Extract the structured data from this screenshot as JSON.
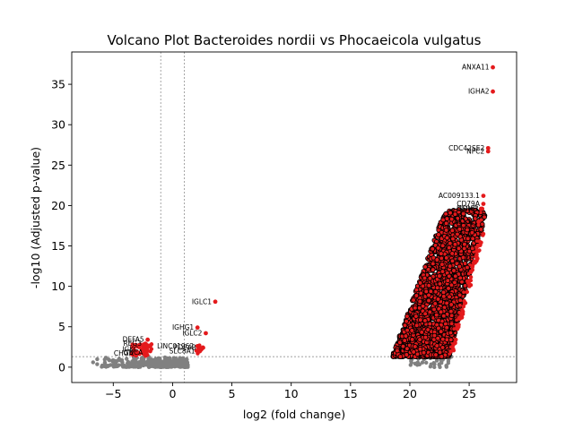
{
  "chart_data": {
    "type": "scatter",
    "title": "Volcano Plot Bacteroides nordii vs Phocaeicola vulgatus",
    "xlabel": "log2 (fold change)",
    "ylabel": "-log10 (Adjusted p-value)",
    "xlim": [
      -8.5,
      29
    ],
    "ylim": [
      -1.9,
      39
    ],
    "xticks": [
      -5,
      0,
      5,
      10,
      15,
      20,
      25
    ],
    "yticks": [
      0,
      5,
      10,
      15,
      20,
      25,
      30,
      35
    ],
    "grid": false,
    "legend": "none",
    "fold_change_thresholds": [
      -1,
      1
    ],
    "pvalue_threshold": 1.3,
    "colors": {
      "significant": "#e41a1c",
      "not_significant": "#808080",
      "threshold_line": "#808080"
    },
    "labeled_points": [
      {
        "label": "ANXA11",
        "x": 27.0,
        "y": 37.1
      },
      {
        "label": "IGHA2",
        "x": 27.0,
        "y": 34.1
      },
      {
        "label": "CDC42SE2",
        "x": 26.6,
        "y": 27.1
      },
      {
        "label": "NPC2",
        "x": 26.6,
        "y": 26.7
      },
      {
        "label": "AC009133.1",
        "x": 26.2,
        "y": 21.2
      },
      {
        "label": "CD79A",
        "x": 26.2,
        "y": 20.2
      },
      {
        "label": "SDHB",
        "x": 26.0,
        "y": 19.6
      },
      {
        "label": "DERL3",
        "x": 26.1,
        "y": 19.6
      },
      {
        "label": "AL132",
        "x": 25.8,
        "y": 18.0
      },
      {
        "label": "IGLC1",
        "x": 3.6,
        "y": 8.1
      },
      {
        "label": "IGHG1",
        "x": 2.1,
        "y": 4.9
      },
      {
        "label": "IGLC2",
        "x": 2.8,
        "y": 4.2
      },
      {
        "label": "LINC01962",
        "x": 2.1,
        "y": 2.6
      },
      {
        "label": "SLC8A1",
        "x": 2.2,
        "y": 2.0
      },
      {
        "label": "PDE4B",
        "x": 2.3,
        "y": 2.4
      },
      {
        "label": "DEFA5",
        "x": -2.1,
        "y": 3.4
      },
      {
        "label": "REG3",
        "x": -2.3,
        "y": 2.9
      },
      {
        "label": "IGKC",
        "x": -2.6,
        "y": 2.2
      },
      {
        "label": "CHGA",
        "x": -3.0,
        "y": 1.7
      },
      {
        "label": "GUCA",
        "x": -2.2,
        "y": 1.8
      }
    ],
    "significant_cluster": {
      "x_range": [
        18.5,
        26.8
      ],
      "y_range": [
        1.3,
        19.5
      ]
    },
    "nonsignificant_cluster": {
      "x_range": [
        -6.8,
        1.3
      ],
      "y_range": [
        0,
        1.3
      ]
    }
  }
}
